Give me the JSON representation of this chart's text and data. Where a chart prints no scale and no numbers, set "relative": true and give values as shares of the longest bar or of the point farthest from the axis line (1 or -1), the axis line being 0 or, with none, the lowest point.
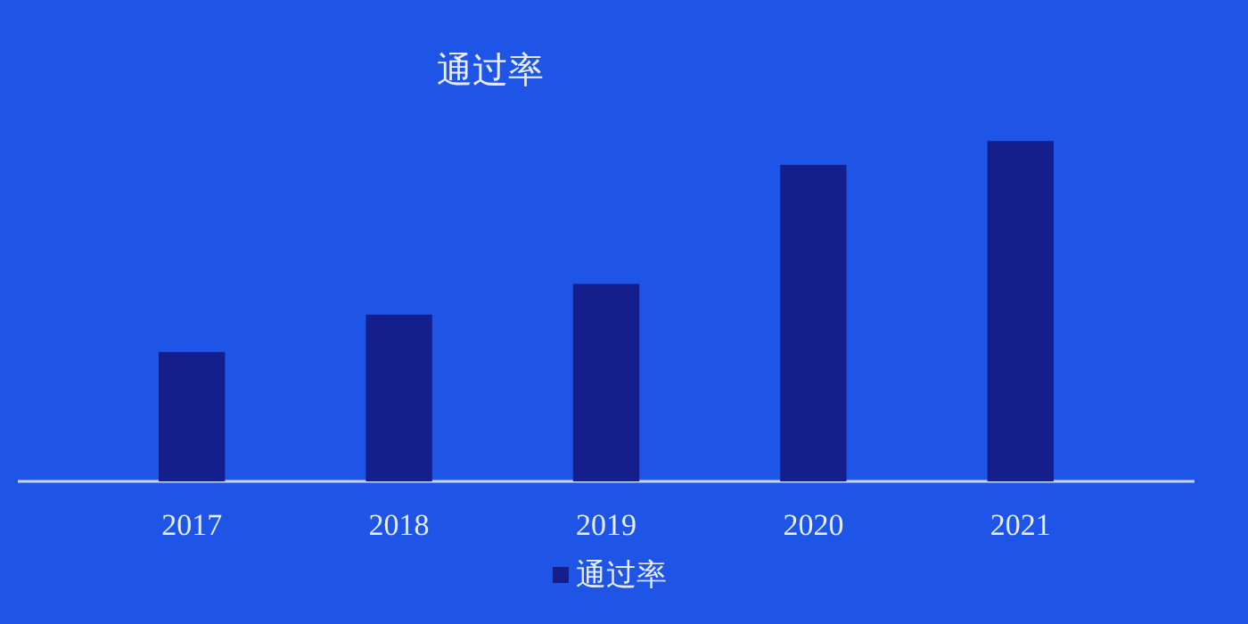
{
  "chart_data": {
    "type": "bar",
    "title": "通过率",
    "categories": [
      "2017",
      "2018",
      "2019",
      "2020",
      "2021"
    ],
    "series": [
      {
        "name": "通过率",
        "color": "#141f8c",
        "values": [
          0.38,
          0.49,
          0.58,
          0.93,
          1
        ]
      }
    ],
    "relative": true,
    "legend": "bottom"
  }
}
